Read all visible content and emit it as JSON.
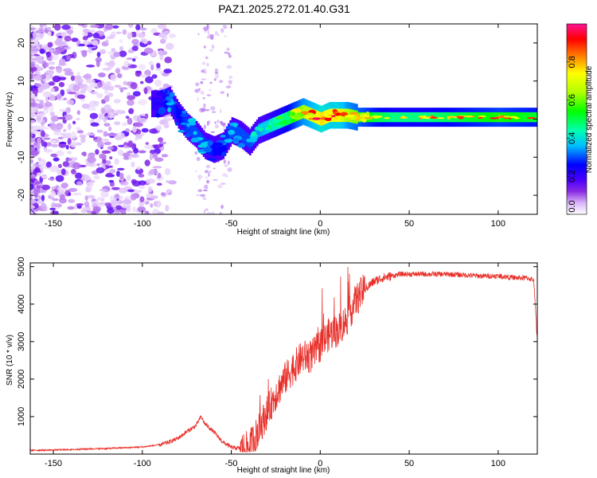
{
  "chart_data": [
    {
      "type": "heatmap",
      "title": "PAZ1.2025.272.01.40.G31",
      "xlabel": "Height of straight line (km)",
      "ylabel": "Frequency (Hz)",
      "xlim": [
        -163,
        122
      ],
      "ylim": [
        -25,
        25
      ],
      "xticks": [
        -150,
        -100,
        -50,
        0,
        50,
        100
      ],
      "yticks": [
        -20,
        -10,
        0,
        10,
        20
      ],
      "colorbar": {
        "label": "Normalized spectral amplitude",
        "range": [
          0,
          1
        ],
        "ticks": [
          0.0,
          0.2,
          0.4,
          0.6,
          0.8
        ],
        "colors": [
          "#ffffff",
          "#d8b4f8",
          "#8a2be2",
          "#4b00ff",
          "#0000ff",
          "#00bfff",
          "#00ffb0",
          "#00ff00",
          "#b0ff00",
          "#ffff00",
          "#ff8000",
          "#ff0000",
          "#ff1493"
        ]
      },
      "ridge": {
        "height_km": [
          -90,
          -85,
          -80,
          -75,
          -70,
          -65,
          -60,
          -55,
          -50,
          -45,
          -40,
          -35,
          -30,
          -25,
          -20,
          -15,
          -10,
          -5,
          0,
          5,
          10,
          15,
          20,
          30,
          40,
          60,
          80,
          100,
          122
        ],
        "frequency_hz": [
          4,
          5,
          1,
          -2,
          -4,
          -7,
          -8,
          -7,
          -3,
          -4,
          -6,
          -3,
          -2,
          -1,
          0,
          1,
          2,
          1,
          0,
          1,
          1,
          1,
          0.5,
          0.5,
          0.5,
          0.5,
          0.5,
          0.5,
          0.5
        ],
        "amplitude": [
          0.25,
          0.35,
          0.3,
          0.35,
          0.35,
          0.35,
          0.3,
          0.3,
          0.35,
          0.35,
          0.35,
          0.4,
          0.45,
          0.5,
          0.55,
          0.65,
          0.75,
          0.8,
          0.9,
          0.85,
          0.85,
          0.75,
          0.7,
          0.6,
          0.55,
          0.55,
          0.6,
          0.65,
          0.6
        ]
      }
    },
    {
      "type": "line",
      "xlabel": "Height of straight line (km)",
      "ylabel": "SNR (10 * v/v)",
      "xlim": [
        -163,
        122
      ],
      "ylim": [
        0,
        5100
      ],
      "xticks": [
        -150,
        -100,
        -50,
        0,
        50,
        100
      ],
      "yticks": [
        1000,
        2000,
        3000,
        4000,
        5000
      ],
      "series": [
        {
          "name": "SNR",
          "color": "#e8302a",
          "x": [
            -163,
            -150,
            -140,
            -130,
            -120,
            -110,
            -100,
            -90,
            -85,
            -80,
            -75,
            -70,
            -67,
            -65,
            -60,
            -55,
            -50,
            -45,
            -42,
            -40,
            -35,
            -30,
            -25,
            -20,
            -15,
            -10,
            -5,
            0,
            5,
            10,
            15,
            20,
            25,
            30,
            35,
            40,
            45,
            50,
            60,
            70,
            80,
            90,
            100,
            110,
            116,
            120,
            122
          ],
          "y": [
            100,
            110,
            120,
            140,
            150,
            170,
            190,
            250,
            320,
            420,
            600,
            750,
            1000,
            820,
            600,
            330,
            180,
            150,
            150,
            200,
            600,
            1100,
            1600,
            2000,
            2300,
            2600,
            2600,
            2900,
            3200,
            3300,
            3600,
            4100,
            4400,
            4600,
            4700,
            4750,
            4800,
            4800,
            4800,
            4800,
            4780,
            4750,
            4750,
            4700,
            4700,
            4650,
            3000
          ]
        }
      ]
    }
  ]
}
